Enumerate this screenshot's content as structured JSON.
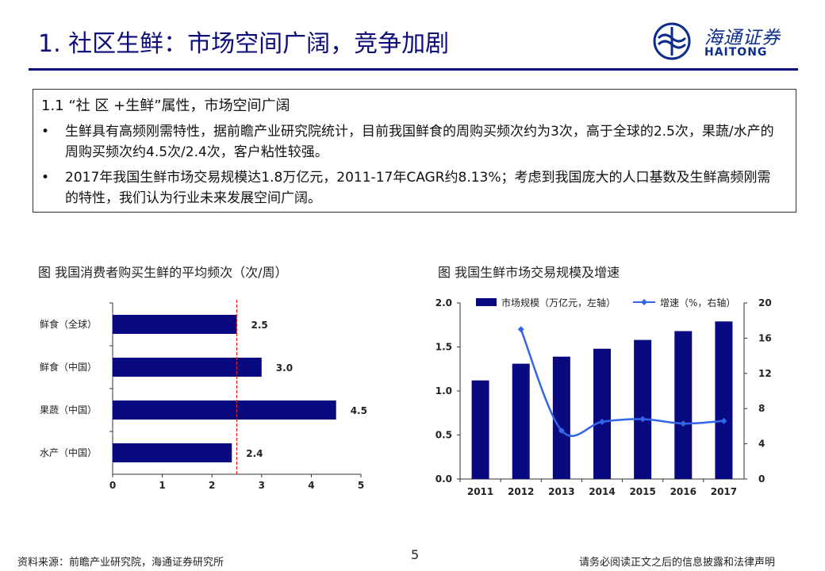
{
  "header": {
    "title": "1. 社区生鲜：市场空间广阔，竞争加剧",
    "logo_cn": "海通证券",
    "logo_en": "HAITONG"
  },
  "summary": {
    "heading": "1.1 “社 区 +生鲜”属性，市场空间广阔",
    "bullet_glyph": "•",
    "bullets": [
      "生鲜具有高频刚需特性，据前瞻产业研究院统计，目前我国鲜食的周购买频次约为3次，高于全球的2.5次，果蔬/水产的周购买频次约4.5次/2.4次，客户粘性较强。",
      "2017年我国生鲜市场交易规模达1.8万亿元，2011-17年CAGR约8.13%；考虑到我国庞大的人口基数及生鲜高频刚需的特性，我们认为行业未来发展空间广阔。"
    ]
  },
  "chart_data": [
    {
      "type": "bar",
      "orientation": "horizontal",
      "title": "图 我国消费者购买生鲜的平均频次（次/周）",
      "categories": [
        "鲜食（全球）",
        "鲜食（中国）",
        "果蔬（中国）",
        "水产（中国）"
      ],
      "values": [
        2.5,
        3.0,
        4.5,
        2.4
      ],
      "value_labels": [
        "2.5",
        "3.0",
        "4.5",
        "2.4"
      ],
      "xlim": [
        0,
        5
      ],
      "xticks": [
        "0",
        "1",
        "2",
        "3",
        "4",
        "5"
      ],
      "reference_line": 2.5,
      "colors": {
        "bar": "#0a0a80",
        "reference": "#e0201a"
      },
      "grid": false
    },
    {
      "type": "bar",
      "title": "图 我国生鲜市场交易规模及增速",
      "categories": [
        "2011",
        "2012",
        "2013",
        "2014",
        "2015",
        "2016",
        "2017"
      ],
      "series": [
        {
          "name": "市场规模（万亿元，左轴）",
          "type": "bar",
          "axis": "left",
          "values": [
            1.12,
            1.31,
            1.39,
            1.48,
            1.58,
            1.68,
            1.79
          ]
        },
        {
          "name": "增速（%，右轴）",
          "type": "line",
          "axis": "right",
          "values": [
            null,
            17.0,
            5.5,
            6.5,
            6.8,
            6.3,
            6.6
          ]
        }
      ],
      "ylim_left": [
        0,
        2.0
      ],
      "yticks_left": [
        "0.0",
        "0.5",
        "1.0",
        "1.5",
        "2.0"
      ],
      "ylim_right": [
        0,
        20
      ],
      "yticks_right": [
        "0",
        "4",
        "8",
        "12",
        "16",
        "20"
      ],
      "legend": "top",
      "colors": {
        "bar": "#0a0a80",
        "line": "#3366e6"
      },
      "grid": false
    }
  ],
  "footer": {
    "source": "资料来源：前瞻产业研究院，海通证券研究所",
    "page_number": "5",
    "disclaimer": "请务必阅读正文之后的信息披露和法律声明"
  }
}
